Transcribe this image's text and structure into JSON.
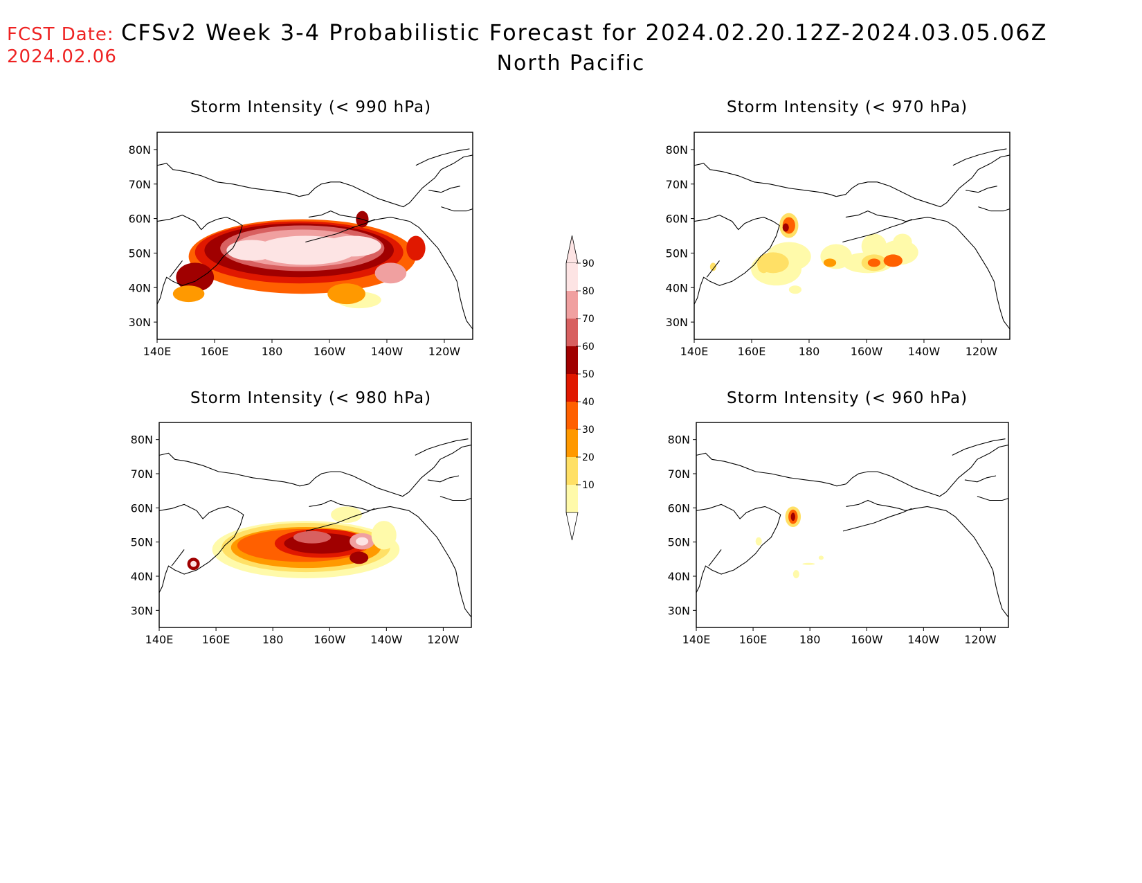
{
  "header": {
    "fcst_label": "FCST Date:",
    "fcst_date": "2024.02.06",
    "title": "CFSv2 Week 3-4 Probabilistic Forecast for 2024.02.20.12Z-2024.03.05.06Z",
    "subtitle": "North Pacific"
  },
  "axes": {
    "lon_ticks": [
      "140E",
      "160E",
      "180",
      "160W",
      "140W",
      "120W"
    ],
    "lat_ticks": [
      "80N",
      "70N",
      "60N",
      "50N",
      "40N",
      "30N"
    ]
  },
  "panels": [
    {
      "title": "Storm Intensity (< 990 hPa)",
      "level": "high"
    },
    {
      "title": "Storm Intensity (< 970 hPa)",
      "level": "low"
    },
    {
      "title": "Storm Intensity (< 980 hPa)",
      "level": "mid"
    },
    {
      "title": "Storm Intensity (< 960 hPa)",
      "level": "min"
    }
  ],
  "colorbar": {
    "labels": [
      "90",
      "80",
      "70",
      "60",
      "50",
      "40",
      "30",
      "20",
      "10"
    ],
    "colors": [
      "#fde4e4",
      "#f0a0a0",
      "#d86060",
      "#a00000",
      "#e01800",
      "#ff6000",
      "#ff9900",
      "#ffe066",
      "#fffaaa"
    ]
  }
}
